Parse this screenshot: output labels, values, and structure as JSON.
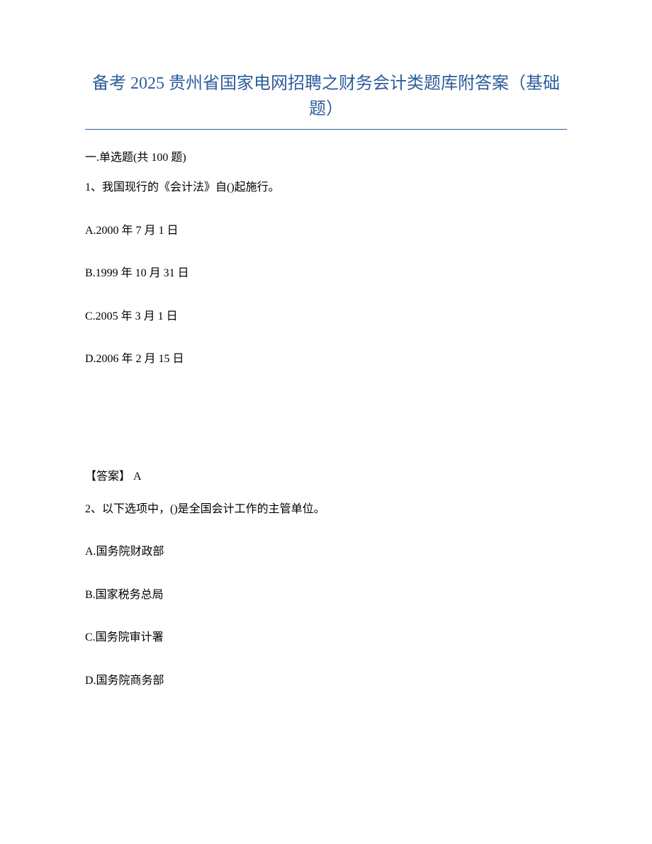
{
  "title": "备考 2025 贵州省国家电网招聘之财务会计类题库附答案（基础题）",
  "section_header": "一.单选题(共 100 题)",
  "question1": {
    "text": "1、我国现行的《会计法》自()起施行。",
    "options": {
      "a": "A.2000 年 7 月 1 日",
      "b": "B.1999 年 10 月 31 日",
      "c": "C.2005 年 3 月 1 日",
      "d": "D.2006 年 2 月 15 日"
    },
    "answer": "【答案】  A"
  },
  "question2": {
    "text": "2、以下选项中，()是全国会计工作的主管单位。",
    "options": {
      "a": "A.国务院财政部",
      "b": "B.国家税务总局",
      "c": "C.国务院审计署",
      "d": "D.国务院商务部"
    }
  },
  "colors": {
    "title_color": "#2e5c9a",
    "text_color": "#000000",
    "background_color": "#ffffff",
    "underline_color": "#2e5c9a"
  },
  "typography": {
    "title_fontsize": 24,
    "body_fontsize": 16,
    "font_family": "SimSun"
  }
}
